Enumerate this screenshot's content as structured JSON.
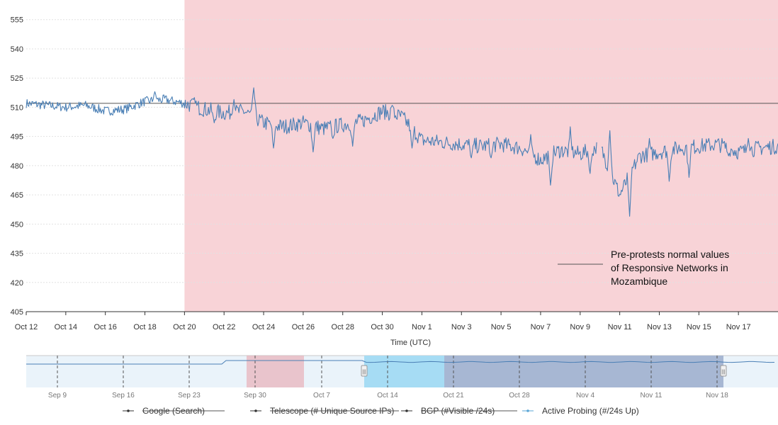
{
  "chart_data": {
    "type": "line",
    "xlabel": "Time (UTC)",
    "ylabel": "",
    "ylim": [
      405,
      560
    ],
    "yticks": [
      405,
      420,
      435,
      450,
      465,
      480,
      495,
      510,
      525,
      540,
      555
    ],
    "x_range": [
      "2024-10-12",
      "2024-11-19"
    ],
    "xtick_labels": [
      "Oct 12",
      "Oct 14",
      "Oct 16",
      "Oct 18",
      "Oct 20",
      "Oct 22",
      "Oct 24",
      "Oct 26",
      "Oct 28",
      "Oct 30",
      "Nov 1",
      "Nov 3",
      "Nov 5",
      "Nov 7",
      "Nov 9",
      "Nov 11",
      "Nov 13",
      "Nov 15",
      "Nov 17"
    ],
    "grid": "horizontal",
    "highlight_region": {
      "start": "2024-10-20",
      "end": "2024-11-19",
      "color": "#f8d3d7"
    },
    "reference_line": {
      "value": 512,
      "color": "#555555",
      "label": "Pre-protests normal values of Responsive Networks in Mozambique"
    },
    "series": [
      {
        "name": "Active Probing (#/24s Up)",
        "color": "#4a7fb5",
        "points": [
          [
            "2024-10-12",
            512
          ],
          [
            "2024-10-13",
            511
          ],
          [
            "2024-10-14",
            510
          ],
          [
            "2024-10-15",
            511
          ],
          [
            "2024-10-16",
            508
          ],
          [
            "2024-10-17",
            509
          ],
          [
            "2024-10-18",
            513
          ],
          [
            "2024-10-19",
            514
          ],
          [
            "2024-10-20",
            512
          ],
          [
            "2024-10-21",
            509
          ],
          [
            "2024-10-22",
            507
          ],
          [
            "2024-10-23",
            508
          ],
          [
            "2024-10-24",
            502
          ],
          [
            "2024-10-25",
            500
          ],
          [
            "2024-10-26",
            502
          ],
          [
            "2024-10-27",
            499
          ],
          [
            "2024-10-28",
            501
          ],
          [
            "2024-10-29",
            503
          ],
          [
            "2024-10-30",
            508
          ],
          [
            "2024-10-31",
            505
          ],
          [
            "2024-11-01",
            493
          ],
          [
            "2024-11-02",
            492
          ],
          [
            "2024-11-03",
            491
          ],
          [
            "2024-11-04",
            490
          ],
          [
            "2024-11-05",
            491
          ],
          [
            "2024-11-06",
            489
          ],
          [
            "2024-11-07",
            483
          ],
          [
            "2024-11-08",
            488
          ],
          [
            "2024-11-09",
            486
          ],
          [
            "2024-11-10",
            490
          ],
          [
            "2024-11-11",
            465
          ],
          [
            "2024-11-12",
            485
          ],
          [
            "2024-11-13",
            487
          ],
          [
            "2024-11-14",
            489
          ],
          [
            "2024-11-15",
            490
          ],
          [
            "2024-11-16",
            491
          ],
          [
            "2024-11-17",
            487
          ],
          [
            "2024-11-18",
            489
          ],
          [
            "2024-11-19",
            490
          ]
        ],
        "dips": [
          [
            "2024-10-21",
            502
          ],
          [
            "2024-10-24",
            489
          ],
          [
            "2024-10-26",
            487
          ],
          [
            "2024-10-27",
            494
          ],
          [
            "2024-10-28",
            490
          ],
          [
            "2024-10-31",
            489
          ],
          [
            "2024-11-03",
            484
          ],
          [
            "2024-11-04",
            484
          ],
          [
            "2024-11-06",
            478
          ],
          [
            "2024-11-07",
            470
          ],
          [
            "2024-11-08",
            478
          ],
          [
            "2024-11-09",
            476
          ],
          [
            "2024-11-11",
            454
          ],
          [
            "2024-11-12",
            478
          ],
          [
            "2024-11-13",
            472
          ],
          [
            "2024-11-14",
            474
          ],
          [
            "2024-11-16",
            485
          ]
        ],
        "peaks": [
          [
            "2024-10-18",
            518
          ],
          [
            "2024-10-20",
            515
          ],
          [
            "2024-10-22",
            514
          ],
          [
            "2024-10-23",
            520
          ],
          [
            "2024-10-30",
            511
          ],
          [
            "2024-11-06",
            496
          ],
          [
            "2024-11-08",
            500
          ],
          [
            "2024-11-10",
            498
          ],
          [
            "2024-11-12",
            494
          ],
          [
            "2024-11-17",
            494
          ]
        ]
      }
    ]
  },
  "navigator": {
    "xtick_labels": [
      "Sep 9",
      "Sep 16",
      "Sep 23",
      "Sep 30",
      "Oct 7",
      "Oct 14",
      "Oct 21",
      "Oct 28",
      "Nov 4",
      "Nov 11",
      "Nov 18"
    ],
    "handle_glyph": "|||",
    "legend": [
      {
        "label": "Google (Search)",
        "color": "#333333",
        "enabled": false
      },
      {
        "label": "Telescope (# Unique Source IPs)",
        "color": "#333333",
        "enabled": false
      },
      {
        "label": "BGP (#Visible /24s)",
        "color": "#333333",
        "enabled": false
      },
      {
        "label": "Active Probing (#/24s Up)",
        "color": "#5aa6d6",
        "enabled": true
      }
    ]
  }
}
